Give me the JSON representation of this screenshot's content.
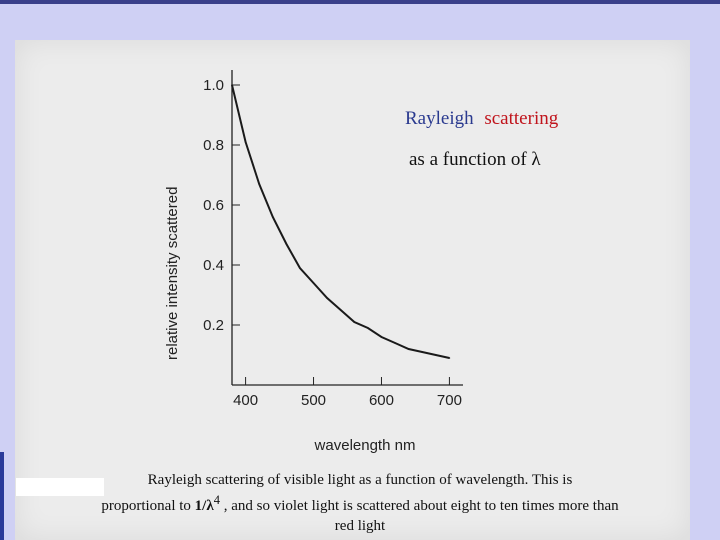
{
  "chart_data": {
    "type": "line",
    "title_part1": "Rayleigh",
    "title_part2": "scattering",
    "subtitle": "as a function of λ",
    "xlabel": "wavelength nm",
    "ylabel": "relative intensity scattered",
    "xlim": [
      380,
      720
    ],
    "ylim": [
      0.0,
      1.05
    ],
    "x_ticks": [
      400,
      500,
      600,
      700
    ],
    "y_ticks": [
      0.2,
      0.4,
      0.6,
      0.8,
      1.0
    ],
    "x_tick_labels": [
      "400",
      "500",
      "600",
      "700"
    ],
    "y_tick_labels": [
      "0.2",
      "0.4",
      "0.6",
      "0.8",
      "1.0"
    ],
    "series": [
      {
        "x": [
          380,
          400,
          420,
          440,
          460,
          480,
          500,
          520,
          540,
          560,
          580,
          600,
          620,
          640,
          660,
          680,
          700
        ],
        "values": [
          1.0,
          0.81,
          0.67,
          0.56,
          0.47,
          0.39,
          0.34,
          0.29,
          0.25,
          0.21,
          0.19,
          0.16,
          0.14,
          0.12,
          0.11,
          0.1,
          0.09
        ]
      }
    ],
    "colors": {
      "title_blue": "#2a3a8f",
      "title_red": "#c0141c",
      "curve": "#1a1a1a"
    }
  },
  "caption": {
    "line1": "Rayleigh scattering of visible light as a function of wavelength. This is",
    "line2_a": "proportional to ",
    "line2_formula": "1/λ",
    "line2_sup": "4",
    "line2_b": " , and so violet light is scattered about eight to ten times more than",
    "line3": "red light"
  }
}
